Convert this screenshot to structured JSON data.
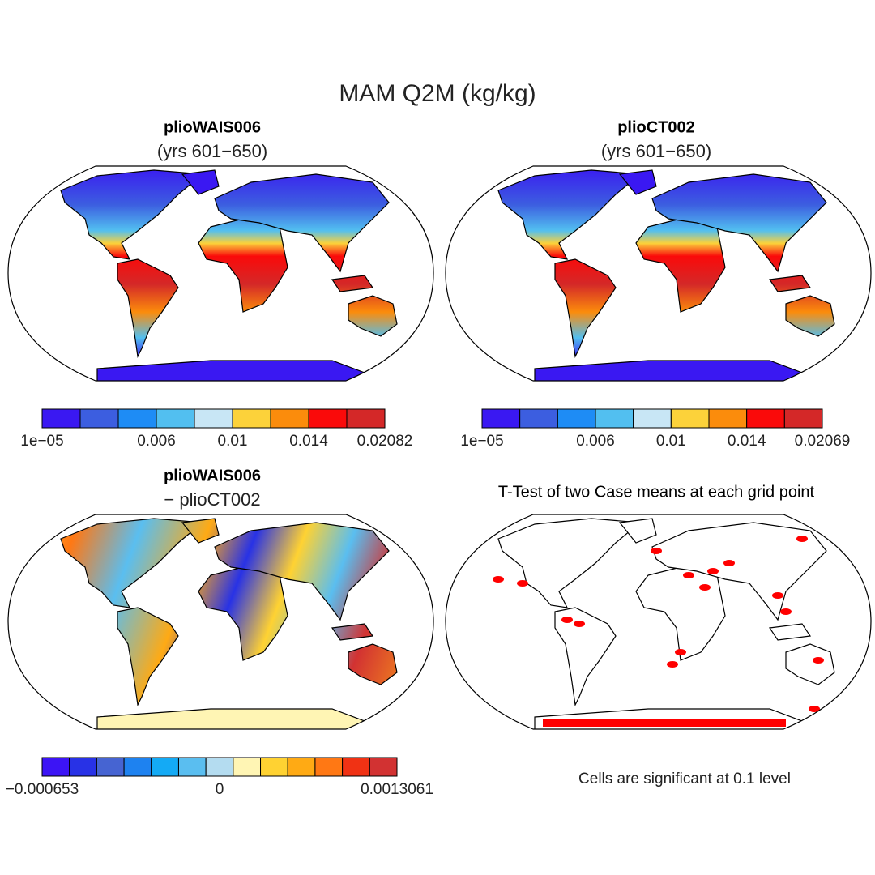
{
  "title": "MAM Q2M (kg/kg)",
  "panels": [
    {
      "title": "plioWAIS006",
      "subtitle": "(yrs 601−650)",
      "colorbar": {
        "colors": [
          "#3a18f2",
          "#3c5ee0",
          "#1e8cf5",
          "#52bff0",
          "#c8e6f5",
          "#fcd23a",
          "#fb8c0c",
          "#fa0a0a",
          "#d42828"
        ],
        "labels": [
          "1e−05",
          "0.006",
          "0.01",
          "0.014",
          "0.02082"
        ]
      }
    },
    {
      "title": "plioCT002",
      "subtitle": "(yrs 601−650)",
      "colorbar": {
        "colors": [
          "#3a18f2",
          "#3c5ee0",
          "#1e8cf5",
          "#52bff0",
          "#c8e6f5",
          "#fcd23a",
          "#fb8c0c",
          "#fa0a0a",
          "#d42828"
        ],
        "labels": [
          "1e−05",
          "0.006",
          "0.01",
          "0.014",
          "0.02069"
        ]
      }
    },
    {
      "title": "plioWAIS006",
      "subtitle": "− plioCT002",
      "colorbar": {
        "colors": [
          "#3c14f5",
          "#2832e6",
          "#4664d2",
          "#1e82f0",
          "#14aaf5",
          "#5abef0",
          "#b4dcf0",
          "#fff5b4",
          "#ffd232",
          "#ffaa14",
          "#ff7814",
          "#f03214",
          "#d23232"
        ],
        "labels": [
          "−0.000653",
          "0",
          "0.0013061"
        ]
      }
    },
    {
      "title": "T-Test of two Case means at each grid point"
    }
  ],
  "footnote": "Cells are significant at 0.1 level"
}
